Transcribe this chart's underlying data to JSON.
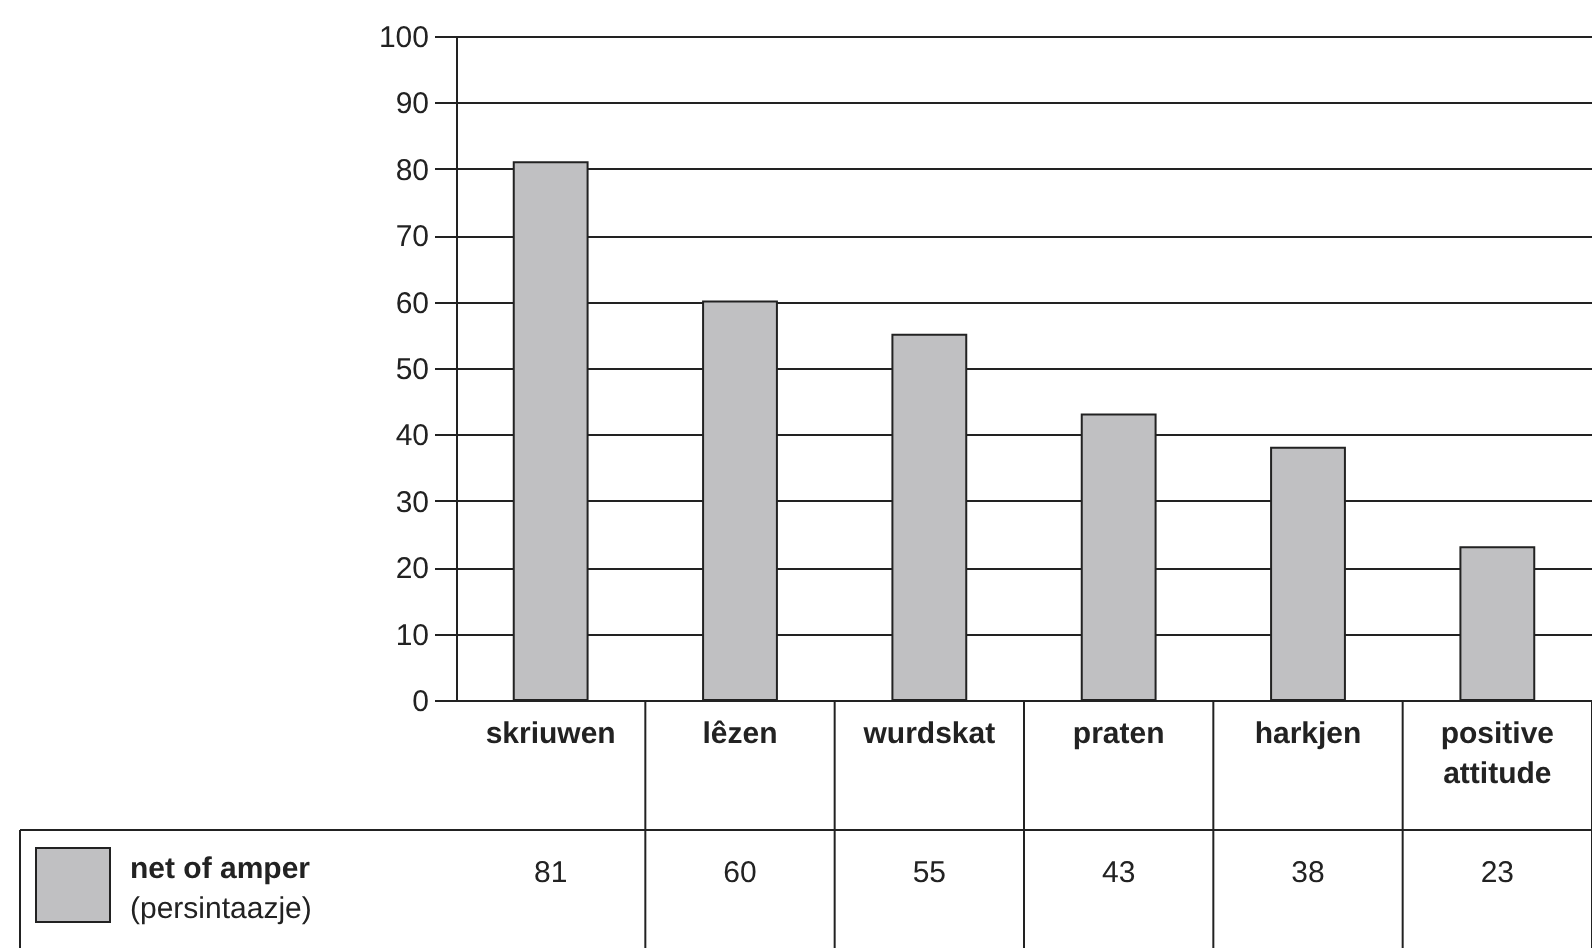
{
  "chart_data": {
    "type": "bar",
    "categories": [
      "skriuwen",
      "lêzen",
      "wurdskat",
      "praten",
      "harkjen",
      "positive attitude"
    ],
    "series": [
      {
        "name": "net of amper (persintaazje)",
        "color": "#c0c0c2",
        "values": [
          81,
          60,
          55,
          43,
          38,
          23
        ]
      }
    ],
    "ylim": [
      0,
      100
    ],
    "yticks": [
      0,
      10,
      20,
      30,
      40,
      50,
      60,
      70,
      80,
      90,
      100
    ],
    "grid": "y",
    "legend": "bottom left",
    "data_labels": true
  }
}
